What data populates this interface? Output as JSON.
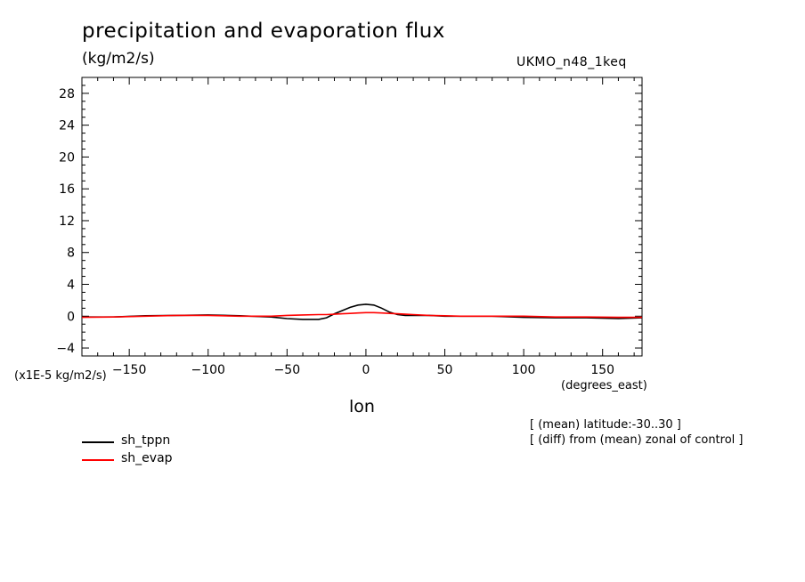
{
  "chart_data": {
    "type": "line",
    "title": "precipitation and evaporation flux",
    "units": "(kg/m2/s)",
    "model": "UKMO_n48_1keq",
    "scale_note": "(x1E-5 kg/m2/s)",
    "xlabel": "lon",
    "xunits": "(degrees_east)",
    "xlim": [
      -180,
      175
    ],
    "ylim": [
      -5,
      30
    ],
    "xticks": [
      -150,
      -100,
      -50,
      0,
      50,
      100,
      150
    ],
    "yticks": [
      -4,
      0,
      4,
      8,
      12,
      16,
      20,
      24,
      28
    ],
    "x": [
      -180,
      -160,
      -140,
      -120,
      -100,
      -80,
      -60,
      -50,
      -40,
      -30,
      -25,
      -20,
      -15,
      -10,
      -5,
      0,
      5,
      10,
      15,
      20,
      25,
      30,
      40,
      50,
      60,
      80,
      100,
      120,
      140,
      160,
      175
    ],
    "series": [
      {
        "name": "sh_tppn",
        "color": "#000000",
        "values": [
          -0.1,
          -0.1,
          0.05,
          0.1,
          0.15,
          0.05,
          -0.1,
          -0.3,
          -0.4,
          -0.4,
          -0.2,
          0.3,
          0.7,
          1.1,
          1.4,
          1.5,
          1.4,
          1.0,
          0.5,
          0.2,
          0.1,
          0.1,
          0.1,
          0.0,
          0.0,
          0.0,
          -0.15,
          -0.2,
          -0.2,
          -0.3,
          -0.2
        ]
      },
      {
        "name": "sh_evap",
        "color": "#ff0000",
        "values": [
          -0.15,
          -0.1,
          0.0,
          0.1,
          0.1,
          0.0,
          0.0,
          0.1,
          0.15,
          0.2,
          0.2,
          0.25,
          0.3,
          0.35,
          0.4,
          0.45,
          0.45,
          0.4,
          0.35,
          0.3,
          0.25,
          0.2,
          0.1,
          0.05,
          0.0,
          0.0,
          0.0,
          -0.1,
          -0.1,
          -0.15,
          -0.15
        ]
      }
    ],
    "notes": [
      "[ (mean) latitude:-30..30 ]",
      "[ (diff) from (mean) zonal of control ]"
    ],
    "legend_placement": "bottom-left",
    "grid": false
  }
}
